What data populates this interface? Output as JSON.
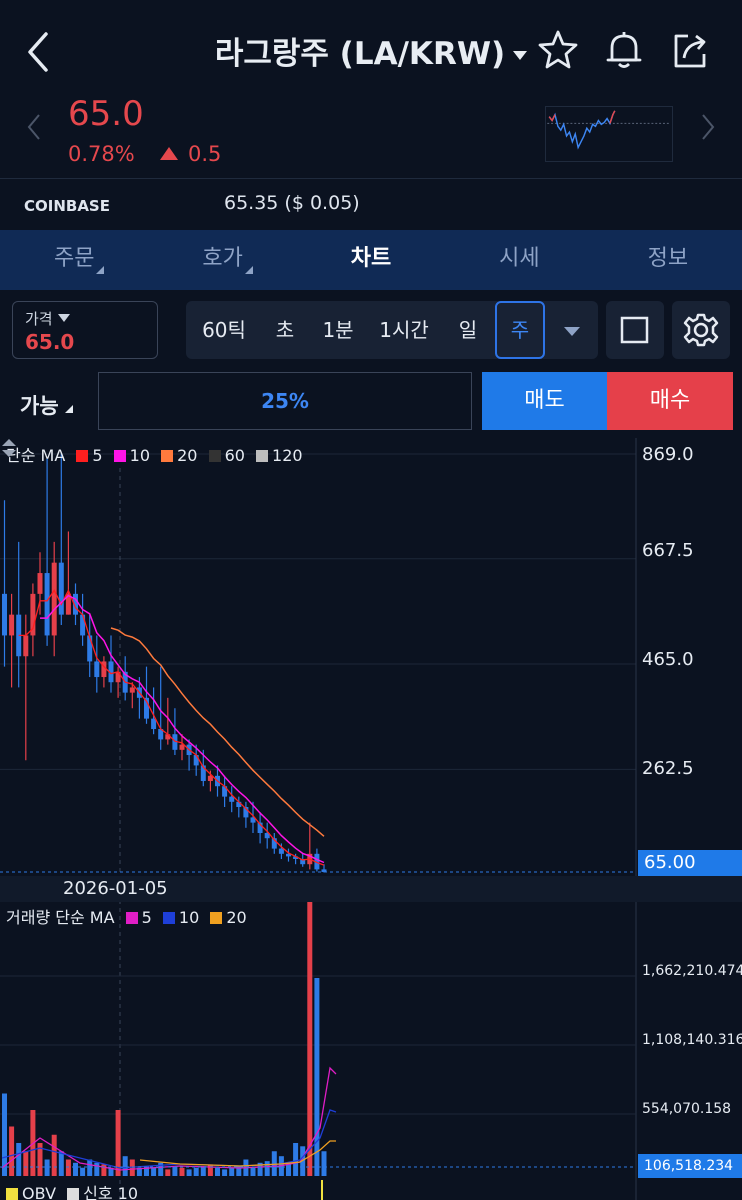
{
  "header": {
    "title": "라그랑주 (LA/KRW)",
    "icons": [
      "back-icon",
      "star-icon",
      "bell-icon",
      "share-icon"
    ]
  },
  "quote": {
    "price": "65.0",
    "change_pct": "0.78%",
    "change_abs": "0.5",
    "up_color": "#e5484d"
  },
  "exchange": {
    "name": "COINBASE",
    "price": "65.35 ($ 0.05)"
  },
  "tabs": [
    {
      "label": "주문",
      "active": false
    },
    {
      "label": "호가",
      "active": false
    },
    {
      "label": "차트",
      "active": true
    },
    {
      "label": "시세",
      "active": false
    },
    {
      "label": "정보",
      "active": false
    }
  ],
  "toolbar": {
    "price_label": "가격",
    "price_value": "65.0",
    "intervals": [
      "60틱",
      "초",
      "1분",
      "1시간",
      "일",
      "주"
    ],
    "selected_interval": "주"
  },
  "trade": {
    "avail_label": "가능",
    "pct": "25%",
    "sell_label": "매도",
    "buy_label": "매수",
    "sell_color": "#1f7ae8",
    "buy_color": "#e5404a"
  },
  "chart_data": [
    {
      "type": "candlestick",
      "legend_title": "단순 MA",
      "ma_legend": [
        {
          "name": "5",
          "color": "#ff1f1f"
        },
        {
          "name": "10",
          "color": "#ff14e6"
        },
        {
          "name": "20",
          "color": "#ff7a3d"
        },
        {
          "name": "60",
          "color": "#333333"
        },
        {
          "name": "120",
          "color": "#bdbdbd"
        }
      ],
      "y_ticks": [
        "869.0",
        "667.5",
        "465.0",
        "262.5"
      ],
      "ylim": [
        65,
        869
      ],
      "current_value": "65.00",
      "date_label": "2026-01-05",
      "candles": [
        [
          600,
          520,
          780,
          460
        ],
        [
          520,
          560,
          600,
          420
        ],
        [
          560,
          480,
          700,
          420
        ],
        [
          480,
          520,
          560,
          280
        ],
        [
          520,
          600,
          620,
          480
        ],
        [
          600,
          640,
          680,
          560
        ],
        [
          640,
          520,
          860,
          500
        ],
        [
          520,
          660,
          700,
          480
        ],
        [
          660,
          560,
          870,
          540
        ],
        [
          560,
          600,
          720,
          560
        ],
        [
          600,
          560,
          620,
          540
        ],
        [
          560,
          520,
          600,
          500
        ],
        [
          520,
          470,
          560,
          440
        ],
        [
          470,
          440,
          520,
          410
        ],
        [
          440,
          470,
          480,
          420
        ],
        [
          470,
          430,
          520,
          410
        ],
        [
          430,
          450,
          460,
          400
        ],
        [
          450,
          410,
          480,
          395
        ],
        [
          410,
          420,
          430,
          380
        ],
        [
          420,
          400,
          440,
          360
        ],
        [
          400,
          360,
          460,
          350
        ],
        [
          360,
          340,
          420,
          330
        ],
        [
          340,
          320,
          460,
          300
        ],
        [
          320,
          330,
          400,
          310
        ],
        [
          330,
          300,
          380,
          290
        ],
        [
          300,
          310,
          330,
          280
        ],
        [
          310,
          290,
          320,
          260
        ],
        [
          290,
          270,
          310,
          250
        ],
        [
          270,
          240,
          300,
          230
        ],
        [
          240,
          250,
          260,
          220
        ],
        [
          250,
          230,
          270,
          210
        ],
        [
          230,
          210,
          250,
          190
        ],
        [
          210,
          200,
          230,
          180
        ],
        [
          200,
          190,
          210,
          170
        ],
        [
          190,
          170,
          200,
          150
        ],
        [
          170,
          160,
          200,
          140
        ],
        [
          160,
          140,
          180,
          120
        ],
        [
          140,
          130,
          160,
          110
        ],
        [
          130,
          110,
          140,
          100
        ],
        [
          110,
          100,
          120,
          90
        ],
        [
          100,
          95,
          110,
          85
        ],
        [
          95,
          90,
          100,
          80
        ],
        [
          90,
          80,
          100,
          75
        ],
        [
          80,
          100,
          160,
          70
        ],
        [
          100,
          70,
          110,
          66
        ],
        [
          70,
          65,
          80,
          64
        ]
      ]
    },
    {
      "type": "bar",
      "title": "거래량",
      "legend_title": "단순 MA",
      "ma_legend": [
        {
          "name": "5",
          "color": "#e01ec6"
        },
        {
          "name": "10",
          "color": "#1e3fd8"
        },
        {
          "name": "20",
          "color": "#f0a020"
        }
      ],
      "y_ticks": [
        "1,662,210.474",
        "1,108,140.316",
        "554,070.158"
      ],
      "current_value": "106,518.234"
    },
    {
      "type": "line",
      "legend": [
        {
          "name": "OBV",
          "color": "#f0e040"
        },
        {
          "name": "신호 10",
          "color": "#dddddd"
        }
      ]
    }
  ]
}
